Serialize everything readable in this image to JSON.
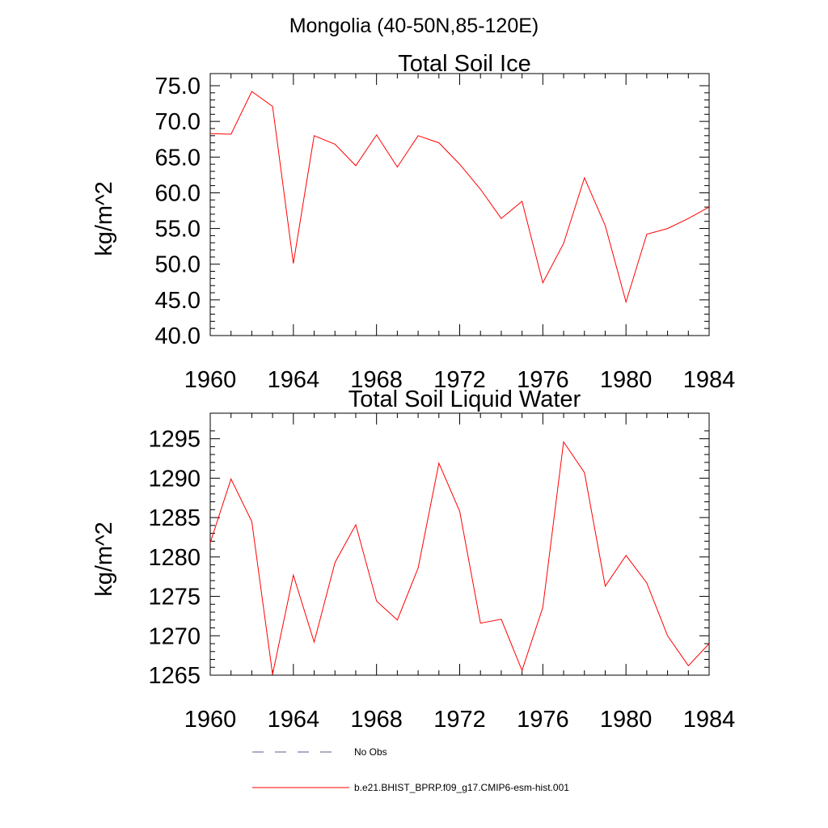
{
  "figure_title": "Mongolia (40-50N,85-120E)",
  "colors": {
    "model_line": "#ff0000",
    "obs_line": "#5a5a8c",
    "axis": "#000000"
  },
  "legend": {
    "obs_label": "No Obs",
    "model_label": "b.e21.BHIST_BPRP.f09_g17.CMIP6-esm-hist.001"
  },
  "chart_data": [
    {
      "type": "line",
      "title": "Total Soil Ice",
      "xlabel": "",
      "ylabel": "kg/m^2",
      "xlim": [
        1960,
        1984
      ],
      "ylim": [
        40,
        75
      ],
      "xticks": [
        1960,
        1964,
        1968,
        1972,
        1976,
        1980,
        1984
      ],
      "xtick_labels": [
        "1960",
        "1964",
        "1968",
        "1972",
        "1976",
        "1980",
        "1984"
      ],
      "yticks": [
        40,
        45,
        50,
        55,
        60,
        65,
        70,
        75
      ],
      "ytick_labels": [
        "40.0",
        "45.0",
        "50.0",
        "55.0",
        "60.0",
        "65.0",
        "70.0",
        "75.0"
      ],
      "grid": false,
      "x": [
        1960,
        1961,
        1962,
        1963,
        1964,
        1965,
        1966,
        1967,
        1968,
        1969,
        1970,
        1971,
        1972,
        1973,
        1974,
        1975,
        1976,
        1977,
        1978,
        1979,
        1980,
        1981,
        1982,
        1983,
        1984
      ],
      "series": [
        {
          "values": [
            68.3,
            68.2,
            74.2,
            72.1,
            50.1,
            68.0,
            66.8,
            63.8,
            68.1,
            63.6,
            68.0,
            67.0,
            64.0,
            60.5,
            56.4,
            58.8,
            47.4,
            52.9,
            62.1,
            55.4,
            44.7,
            54.2,
            55.0,
            56.4,
            58.0
          ]
        }
      ]
    },
    {
      "type": "line",
      "title": "Total Soil Liquid Water",
      "xlabel": "",
      "ylabel": "kg/m^2",
      "xlim": [
        1960,
        1984
      ],
      "ylim": [
        1265,
        1296.5
      ],
      "xticks": [
        1960,
        1964,
        1968,
        1972,
        1976,
        1980,
        1984
      ],
      "xtick_labels": [
        "1960",
        "1964",
        "1968",
        "1972",
        "1976",
        "1980",
        "1984"
      ],
      "yticks": [
        1265,
        1270,
        1275,
        1280,
        1285,
        1290,
        1295
      ],
      "ytick_labels": [
        "1265",
        "1270",
        "1275",
        "1280",
        "1285",
        "1290",
        "1295"
      ],
      "grid": false,
      "x": [
        1960,
        1961,
        1962,
        1963,
        1964,
        1965,
        1966,
        1967,
        1968,
        1969,
        1970,
        1971,
        1972,
        1973,
        1974,
        1975,
        1976,
        1977,
        1978,
        1979,
        1980,
        1981,
        1982,
        1983,
        1984
      ],
      "series": [
        {
          "values": [
            1281.8,
            1289.9,
            1284.5,
            1265.1,
            1277.7,
            1269.2,
            1279.3,
            1284.1,
            1274.4,
            1272.0,
            1278.6,
            1291.9,
            1285.8,
            1271.6,
            1272.1,
            1265.6,
            1273.6,
            1294.6,
            1290.7,
            1276.3,
            1280.2,
            1276.7,
            1270.0,
            1266.2,
            1269.0
          ]
        }
      ]
    }
  ]
}
